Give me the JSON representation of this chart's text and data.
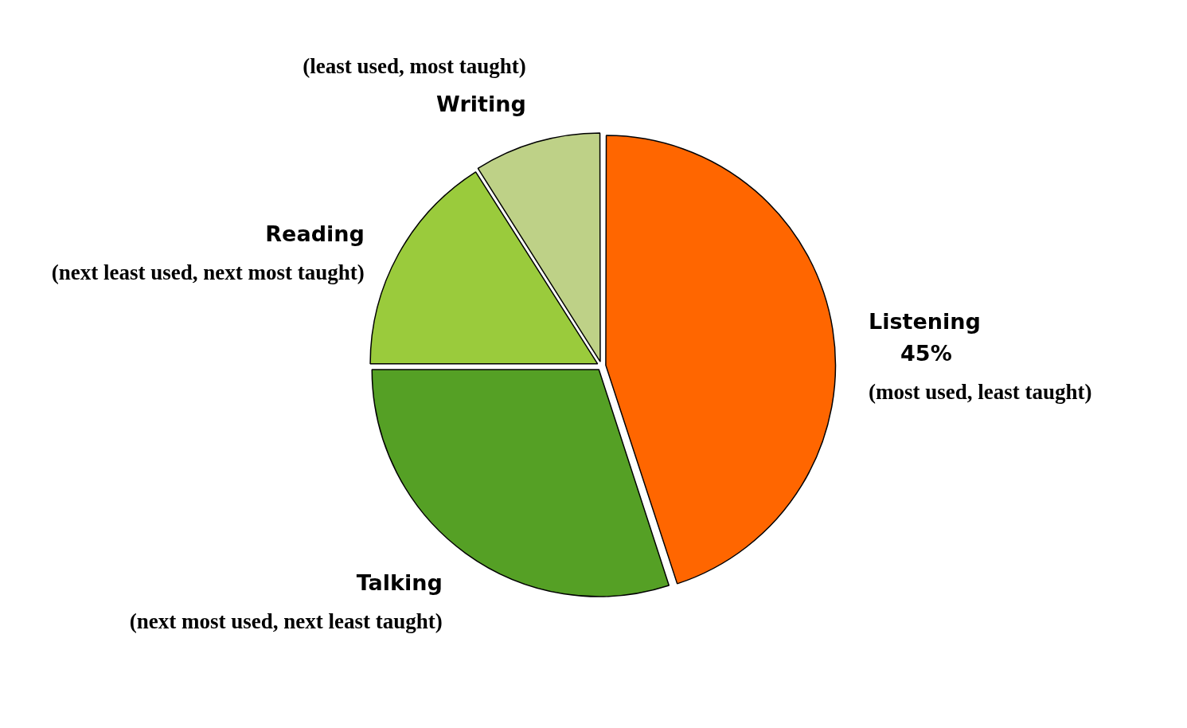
{
  "chart_data": {
    "type": "pie",
    "categories": [
      "Listening",
      "Talking",
      "Reading",
      "Writing"
    ],
    "values": [
      45,
      30,
      16,
      9
    ],
    "value_labels": [
      "45%",
      null,
      null,
      null
    ],
    "colors": [
      "#ff6600",
      "#55a025",
      "#9acb3c",
      "#bed187"
    ],
    "annotations": [
      "(most used, least taught)",
      "(next most used, next least taught)",
      "(next least used, next most taught)",
      "(least used, most taught)"
    ],
    "legend": false
  }
}
